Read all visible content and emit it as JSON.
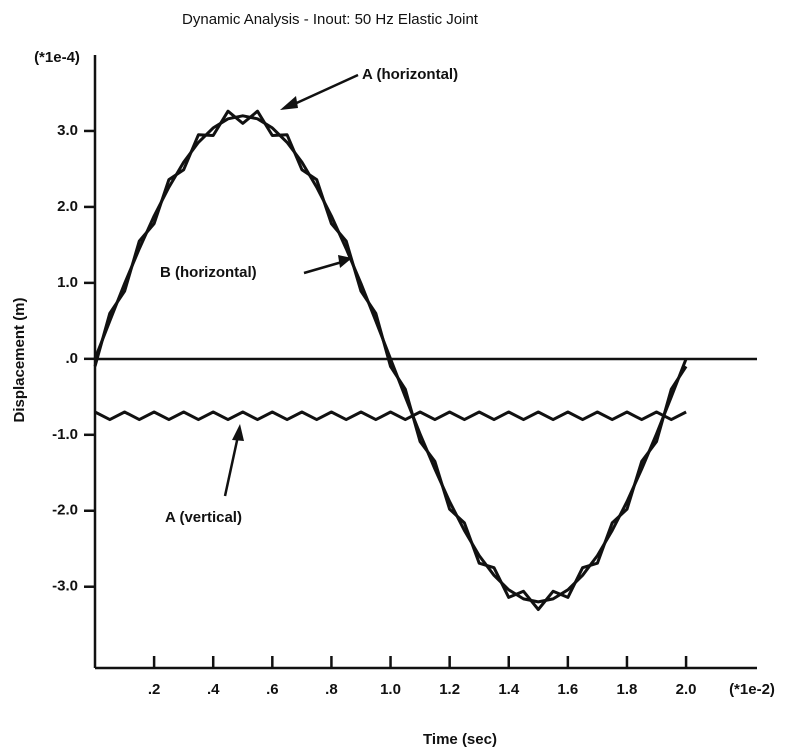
{
  "chart_data": {
    "type": "line",
    "title": "Dynamic Analysis - Inout: 50 Hz Elastic Joint",
    "x_label": "Time (sec)",
    "y_label": "Displacement (m)",
    "x_unit": "(*1e-2)",
    "y_unit": "(*1e-4)",
    "annotations": [
      "A (horizontal)",
      "B (horizontal)",
      "A (vertical)"
    ],
    "x": [
      0,
      0.05,
      0.1,
      0.15,
      0.2,
      0.25,
      0.3,
      0.35,
      0.4,
      0.45,
      0.5,
      0.55,
      0.6,
      0.65,
      0.7,
      0.75,
      0.8,
      0.85,
      0.9,
      0.95,
      1.0,
      1.05,
      1.1,
      1.15,
      1.2,
      1.25,
      1.3,
      1.35,
      1.4,
      1.45,
      1.5,
      1.55,
      1.6,
      1.65,
      1.7,
      1.75,
      1.8,
      1.85,
      1.9,
      1.95,
      2.0
    ],
    "series": [
      {
        "name": "A (horizontal)",
        "color": "#111111",
        "values": [
          -0.1,
          0.6,
          0.89,
          1.55,
          1.78,
          2.36,
          2.49,
          2.95,
          2.94,
          3.26,
          3.1,
          3.26,
          2.94,
          2.95,
          2.49,
          2.36,
          1.78,
          1.55,
          0.89,
          0.6,
          -0.1,
          -0.4,
          -1.09,
          -1.35,
          -1.98,
          -2.16,
          -2.69,
          -2.75,
          -3.14,
          -3.06,
          -3.3,
          -3.06,
          -3.14,
          -2.75,
          -2.69,
          -2.16,
          -1.98,
          -1.35,
          -1.09,
          -0.4,
          -0.1
        ]
      },
      {
        "name": "B (horizontal)",
        "color": "#111111",
        "values": [
          0,
          0.5,
          0.99,
          1.45,
          1.88,
          2.26,
          2.59,
          2.85,
          3.04,
          3.16,
          3.2,
          3.16,
          3.04,
          2.85,
          2.59,
          2.26,
          1.88,
          1.45,
          0.99,
          0.5,
          0,
          -0.5,
          -0.99,
          -1.45,
          -1.88,
          -2.26,
          -2.59,
          -2.85,
          -3.04,
          -3.16,
          -3.2,
          -3.16,
          -3.04,
          -2.85,
          -2.59,
          -2.26,
          -1.88,
          -1.45,
          -0.99,
          -0.5,
          0
        ]
      },
      {
        "name": "A (vertical)",
        "color": "#111111",
        "values": [
          -0.7,
          -0.8,
          -0.7,
          -0.8,
          -0.7,
          -0.8,
          -0.7,
          -0.8,
          -0.7,
          -0.8,
          -0.7,
          -0.8,
          -0.7,
          -0.8,
          -0.7,
          -0.8,
          -0.7,
          -0.8,
          -0.7,
          -0.8,
          -0.7,
          -0.8,
          -0.7,
          -0.8,
          -0.7,
          -0.8,
          -0.7,
          -0.8,
          -0.7,
          -0.8,
          -0.7,
          -0.8,
          -0.7,
          -0.8,
          -0.7,
          -0.8,
          -0.7,
          -0.8,
          -0.7,
          -0.8,
          -0.7
        ]
      }
    ],
    "xlim": [
      0,
      2.24
    ],
    "ylim": [
      -4.07,
      4.0
    ],
    "xticks": [
      {
        "value": 0.2,
        "label": ".2"
      },
      {
        "value": 0.4,
        "label": ".4"
      },
      {
        "value": 0.6,
        "label": ".6"
      },
      {
        "value": 0.8,
        "label": ".8"
      },
      {
        "value": 1.0,
        "label": "1.0"
      },
      {
        "value": 1.2,
        "label": "1.2"
      },
      {
        "value": 1.4,
        "label": "1.4"
      },
      {
        "value": 1.6,
        "label": "1.6"
      },
      {
        "value": 1.8,
        "label": "1.8"
      },
      {
        "value": 2.0,
        "label": "2.0"
      }
    ],
    "yticks": [
      {
        "value": 3.0,
        "label": "3.0"
      },
      {
        "value": 2.0,
        "label": "2.0"
      },
      {
        "value": 1.0,
        "label": "1.0"
      },
      {
        "value": 0,
        "label": ".0"
      },
      {
        "value": -1.0,
        "label": "-1.0"
      },
      {
        "value": -2.0,
        "label": "-2.0"
      },
      {
        "value": -3.0,
        "label": "-3.0"
      }
    ],
    "grid": false
  }
}
